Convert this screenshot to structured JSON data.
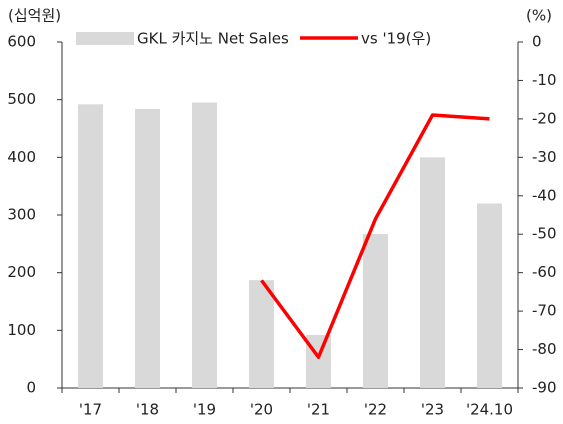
{
  "chart_data": {
    "type": "bar",
    "y_label": "(십억원)",
    "y2_label": "(%)",
    "categories": [
      "'17",
      "'18",
      "'19",
      "'20",
      "'21",
      "'22",
      "'23",
      "'24.10"
    ],
    "series": [
      {
        "name": "GKL 카지노 Net Sales",
        "type": "bar",
        "color": "#d9d9d9",
        "values": [
          492,
          484,
          495,
          187,
          92,
          267,
          400,
          320
        ]
      },
      {
        "name": "vs '19(우)",
        "type": "line",
        "axis": "y2",
        "color": "#ff0000",
        "values": [
          null,
          null,
          null,
          -62,
          -82,
          -46,
          -19,
          -20
        ]
      }
    ],
    "ylim": [
      0,
      600
    ],
    "yticks": [
      0,
      100,
      200,
      300,
      400,
      500,
      600
    ],
    "y2lim": [
      -90,
      0
    ],
    "y2ticks": [
      0,
      -10,
      -20,
      -30,
      -40,
      -50,
      -60,
      -70,
      -80,
      -90
    ],
    "legend": "top"
  }
}
